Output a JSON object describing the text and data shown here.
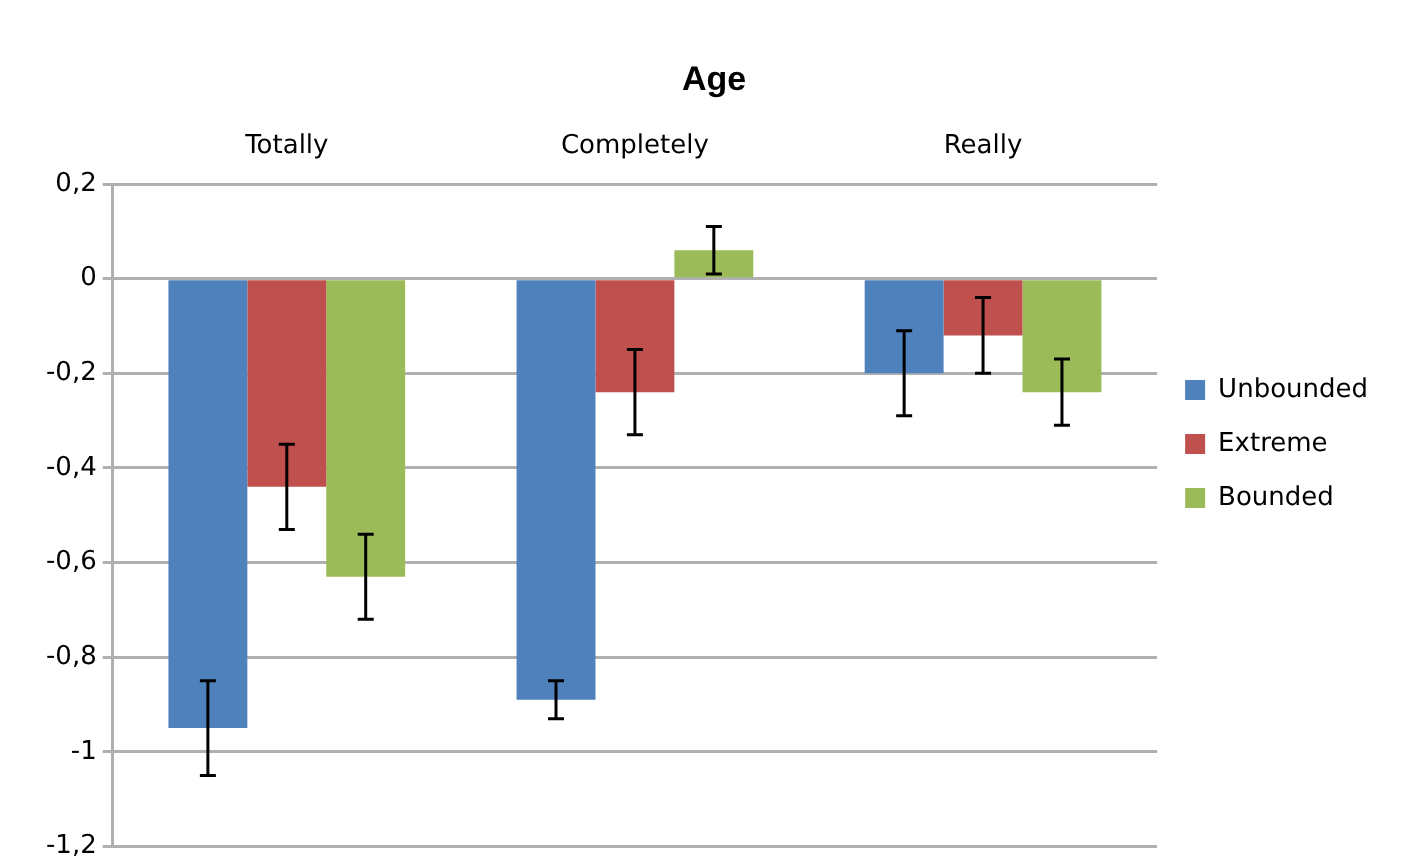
{
  "chart_data": {
    "type": "bar",
    "title": "Age",
    "categories": [
      "Totally",
      "Completely",
      "Really"
    ],
    "series": [
      {
        "name": "Unbounded",
        "color": "#4f81bd",
        "values": [
          -0.95,
          -0.89,
          -0.2
        ],
        "errors": [
          0.1,
          0.04,
          0.09
        ]
      },
      {
        "name": "Extreme",
        "color": "#c0504d",
        "values": [
          -0.44,
          -0.24,
          -0.12
        ],
        "errors": [
          0.09,
          0.09,
          0.08
        ]
      },
      {
        "name": "Bounded",
        "color": "#9bbb59",
        "values": [
          -0.63,
          0.06,
          -0.24
        ],
        "errors": [
          0.09,
          0.05,
          0.07
        ]
      }
    ],
    "ylim": [
      -1.2,
      0.2
    ],
    "yticks": [
      {
        "value": -1.2,
        "label": "-1,2"
      },
      -1,
      {
        "value": -0.8,
        "label": "-0,8"
      },
      {
        "value": -0.6,
        "label": "-0,6"
      },
      {
        "value": -0.4,
        "label": "-0,4"
      },
      {
        "value": -0.2,
        "label": "-0,2"
      },
      0,
      {
        "value": 0.2,
        "label": "0,2"
      }
    ],
    "grid": "y",
    "legend": "right"
  }
}
